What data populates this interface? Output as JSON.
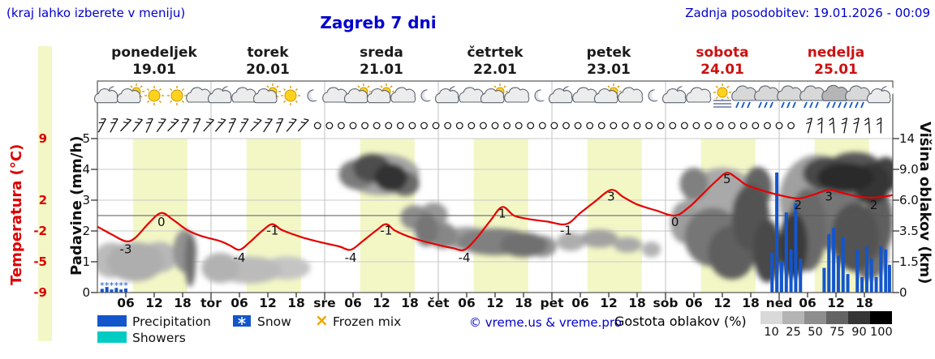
{
  "colors": {
    "accent_blue": "#0000cd",
    "weekend_red": "#cc1111",
    "temp_red": "#e60000",
    "tick_red": "#dd0000",
    "day_band_yellow": "#f3f7c6",
    "precip_blue": "#1356cc",
    "showers_cyan": "#00ccc4",
    "frozen_orange": "#f0a300"
  },
  "header": {
    "hint": "(kraj lahko izberete v meniju)",
    "title": "Zagreb 7 dni",
    "updated": "Zadnja posodobitev: 19.01.2026 - 00:09"
  },
  "axes": {
    "temperature": {
      "label": "Temperatura (°C)",
      "ticks": [
        {
          "value": "9",
          "row": 0
        },
        {
          "value": "2",
          "row": 2
        },
        {
          "value": "-2",
          "row": 3
        },
        {
          "value": "-5",
          "row": 4
        },
        {
          "value": "-9",
          "row": 5
        }
      ]
    },
    "precipitation": {
      "label": "Padavine (mm/h)",
      "ticks": [
        "5",
        "4",
        "3",
        "2",
        "1",
        "0"
      ]
    },
    "cloud_height": {
      "label": "Višina oblakov (km)",
      "ticks": [
        "14",
        "9.0",
        "6.0",
        "3.5",
        "1.5",
        "0"
      ]
    }
  },
  "legend": {
    "items": [
      {
        "label": "Precipitation",
        "swatch": "blue-box"
      },
      {
        "label": "Snow",
        "swatch": "blue-box-snowflake"
      },
      {
        "label": "Frozen mix",
        "swatch": "orange-x",
        "symbol": "×"
      },
      {
        "label": "Showers",
        "swatch": "cyan-box"
      }
    ],
    "copyright": "© vreme.us & vreme.pro",
    "cloud_density": {
      "label": "Gostota oblakov (%)",
      "ticks": [
        "10",
        "25",
        "50",
        "75",
        "90",
        "100"
      ]
    }
  },
  "chart_data": {
    "type": "meteogram",
    "location": "Zagreb",
    "days": [
      {
        "name": "ponedeljek",
        "date": "19.01",
        "weekend": false
      },
      {
        "name": "torek",
        "date": "20.01",
        "weekend": false
      },
      {
        "name": "sreda",
        "date": "21.01",
        "weekend": false
      },
      {
        "name": "četrtek",
        "date": "22.01",
        "weekend": false
      },
      {
        "name": "petek",
        "date": "23.01",
        "weekend": false
      },
      {
        "name": "sobota",
        "date": "24.01",
        "weekend": true
      },
      {
        "name": "nedelja",
        "date": "25.01",
        "weekend": true
      }
    ],
    "hour_ticks": [
      "06",
      "12",
      "18"
    ],
    "day_abbrevs": [
      "tor",
      "sre",
      "čet",
      "pet",
      "sob",
      "ned"
    ],
    "daylight_band_hours": [
      7.5,
      19
    ],
    "temp_axis_c": [
      -9,
      9
    ],
    "precip_axis_mm": [
      0,
      5
    ],
    "cloud_axis_km": [
      0,
      1.5,
      3.5,
      6,
      9,
      14
    ],
    "freezing_line_c": 0,
    "temperature_c": [
      [
        0,
        -1.3
      ],
      [
        3,
        -2.2
      ],
      [
        6,
        -3
      ],
      [
        8,
        -2.6
      ],
      [
        11,
        -0.8
      ],
      [
        13.5,
        0.3
      ],
      [
        16,
        -0.5
      ],
      [
        19,
        -1.7
      ],
      [
        22,
        -2.4
      ],
      [
        26,
        -3
      ],
      [
        28,
        -3.5
      ],
      [
        30,
        -4
      ],
      [
        32,
        -3.2
      ],
      [
        35,
        -1.7
      ],
      [
        37,
        -1
      ],
      [
        39,
        -1.7
      ],
      [
        43,
        -2.5
      ],
      [
        47,
        -3.1
      ],
      [
        51,
        -3.6
      ],
      [
        53.5,
        -4
      ],
      [
        56,
        -3
      ],
      [
        59,
        -1.7
      ],
      [
        61,
        -1
      ],
      [
        63,
        -1.8
      ],
      [
        67,
        -2.7
      ],
      [
        71,
        -3.3
      ],
      [
        75,
        -3.8
      ],
      [
        77.5,
        -4
      ],
      [
        80,
        -2.7
      ],
      [
        83,
        -0.6
      ],
      [
        85.5,
        1
      ],
      [
        88,
        0
      ],
      [
        91,
        -0.4
      ],
      [
        95,
        -0.7
      ],
      [
        99,
        -1
      ],
      [
        102,
        0.3
      ],
      [
        105,
        1.6
      ],
      [
        108.5,
        3
      ],
      [
        111,
        2.2
      ],
      [
        114,
        1.3
      ],
      [
        118,
        0.6
      ],
      [
        122,
        0
      ],
      [
        125,
        1
      ],
      [
        128,
        2.6
      ],
      [
        131,
        4.2
      ],
      [
        133,
        5
      ],
      [
        135,
        4.4
      ],
      [
        137,
        3.6
      ],
      [
        140,
        3
      ],
      [
        144,
        2.4
      ],
      [
        148,
        2
      ],
      [
        151,
        2.4
      ],
      [
        154.5,
        3
      ],
      [
        157,
        2.7
      ],
      [
        160,
        2.3
      ],
      [
        163,
        2.1
      ],
      [
        166,
        2.2
      ],
      [
        168,
        2.4
      ]
    ],
    "temp_point_labels": [
      [
        6,
        -3
      ],
      [
        13.5,
        0
      ],
      [
        30,
        -4
      ],
      [
        37,
        -1
      ],
      [
        53.5,
        -4
      ],
      [
        61,
        -1
      ],
      [
        77.5,
        -4
      ],
      [
        85.5,
        1
      ],
      [
        99,
        -1
      ],
      [
        108.5,
        3
      ],
      [
        122,
        0
      ],
      [
        133,
        5
      ],
      [
        148,
        2
      ],
      [
        154.5,
        3
      ],
      [
        164,
        2
      ]
    ],
    "precip_bars_mm": [
      [
        1,
        0.12
      ],
      [
        2,
        0.18
      ],
      [
        3,
        0.1
      ],
      [
        4,
        0.15
      ],
      [
        5,
        0.1
      ],
      [
        6,
        0.13
      ],
      [
        142.5,
        1.3
      ],
      [
        143.5,
        3.9
      ],
      [
        144.5,
        1.0
      ],
      [
        145.5,
        2.6
      ],
      [
        146.5,
        1.4
      ],
      [
        147.5,
        2.9
      ],
      [
        148.5,
        1.1
      ],
      [
        153.5,
        0.8
      ],
      [
        154.5,
        1.9
      ],
      [
        155.5,
        2.1
      ],
      [
        156.5,
        1.2
      ],
      [
        157.5,
        1.8
      ],
      [
        158.5,
        0.6
      ],
      [
        160.5,
        1.4
      ],
      [
        161.5,
        0.5
      ],
      [
        162.5,
        1.5
      ],
      [
        163.5,
        1.1
      ],
      [
        164.5,
        0.5
      ],
      [
        165.5,
        1.5
      ],
      [
        166.5,
        1.4
      ],
      [
        167.3,
        0.9
      ]
    ],
    "snow_mark_hours": [
      1,
      2,
      3,
      4,
      5,
      6
    ],
    "clouds_h_km_rh_rkm_pct": [
      [
        3,
        1.6,
        4,
        1.0,
        22
      ],
      [
        8,
        1.5,
        6,
        1.1,
        28
      ],
      [
        13,
        1.8,
        4,
        0.9,
        24
      ],
      [
        18.5,
        2.2,
        2.5,
        1.3,
        40
      ],
      [
        19.6,
        1.6,
        1.2,
        1.5,
        55
      ],
      [
        26,
        1.2,
        4,
        0.8,
        26
      ],
      [
        32,
        1.1,
        7,
        0.7,
        22
      ],
      [
        40,
        1.2,
        5,
        0.6,
        18
      ],
      [
        60,
        8.5,
        8,
        2.4,
        32
      ],
      [
        55,
        8.5,
        4,
        1.7,
        50
      ],
      [
        58,
        9.2,
        4,
        1.8,
        70
      ],
      [
        62,
        8.2,
        3.5,
        1.5,
        82
      ],
      [
        65,
        7.6,
        3,
        1.2,
        58
      ],
      [
        67,
        4.6,
        3,
        1.0,
        42
      ],
      [
        69.5,
        3.6,
        2.5,
        1.2,
        52
      ],
      [
        71,
        4.8,
        3,
        1.0,
        38
      ],
      [
        73,
        3.2,
        3,
        0.9,
        45
      ],
      [
        78,
        3.0,
        5,
        0.8,
        35
      ],
      [
        84,
        2.8,
        8,
        0.9,
        48
      ],
      [
        90,
        2.6,
        5,
        0.8,
        55
      ],
      [
        94,
        2.5,
        3,
        0.7,
        40
      ],
      [
        100,
        2.8,
        3,
        0.6,
        28
      ],
      [
        106,
        3.0,
        4,
        0.6,
        33
      ],
      [
        112,
        2.6,
        3,
        0.5,
        30
      ],
      [
        117,
        2.3,
        2,
        0.5,
        26
      ],
      [
        126,
        7.6,
        3,
        1.6,
        48
      ],
      [
        124,
        4.2,
        3,
        1.6,
        35
      ],
      [
        132,
        5.5,
        8,
        3.2,
        30
      ],
      [
        130,
        3.1,
        6,
        2.0,
        52
      ],
      [
        134,
        2.1,
        5,
        1.6,
        62
      ],
      [
        138,
        4.6,
        4,
        2.6,
        68
      ],
      [
        139.5,
        7.2,
        3,
        2.0,
        60
      ],
      [
        141.5,
        2.2,
        3,
        1.9,
        72
      ],
      [
        147,
        2.6,
        3,
        2.1,
        78
      ],
      [
        150,
        3.6,
        4,
        2.9,
        58
      ],
      [
        152,
        6.0,
        8,
        4.0,
        34
      ],
      [
        154,
        8.6,
        5,
        1.9,
        72
      ],
      [
        158,
        8.2,
        6,
        1.6,
        85
      ],
      [
        156,
        5.0,
        6,
        3.1,
        52
      ],
      [
        160,
        10.0,
        5,
        1.6,
        66
      ],
      [
        160,
        3.1,
        5,
        2.3,
        68
      ],
      [
        163.5,
        7.6,
        4,
        2.1,
        80
      ],
      [
        165,
        4.2,
        3,
        2.6,
        62
      ],
      [
        163,
        2.1,
        4,
        1.6,
        55
      ],
      [
        166.5,
        8.5,
        3,
        2.0,
        75
      ]
    ],
    "wind": {
      "step_h": 2.5,
      "segments": [
        {
          "from": 1,
          "to": 44,
          "type": "barb",
          "base_angle": 55
        },
        {
          "from": 46.5,
          "to": 148,
          "type": "calm"
        },
        {
          "from": 150.5,
          "to": 167,
          "type": "barb",
          "base_angle": 85
        }
      ]
    },
    "sky_icons": [
      [
        "cloud-moon",
        "cloud-sun",
        "sun",
        "sun",
        "cloud"
      ],
      [
        "cloud-moon",
        "cloud",
        "cloud-sun",
        "sun",
        "moon"
      ],
      [
        "cloud",
        "cloud-sun",
        "cloud-sun",
        "cloud",
        "moon"
      ],
      [
        "cloud-moon",
        "cloud",
        "cloud-sun",
        "cloud",
        "moon"
      ],
      [
        "cloud-moon",
        "cloud",
        "cloud-sun",
        "cloud",
        "moon"
      ],
      [
        "cloud-moon",
        "cloud",
        "sun-fog",
        "rain",
        "rain"
      ],
      [
        "rain",
        "rain",
        "heavy-rain",
        "rain",
        "cloud-moon"
      ]
    ]
  }
}
